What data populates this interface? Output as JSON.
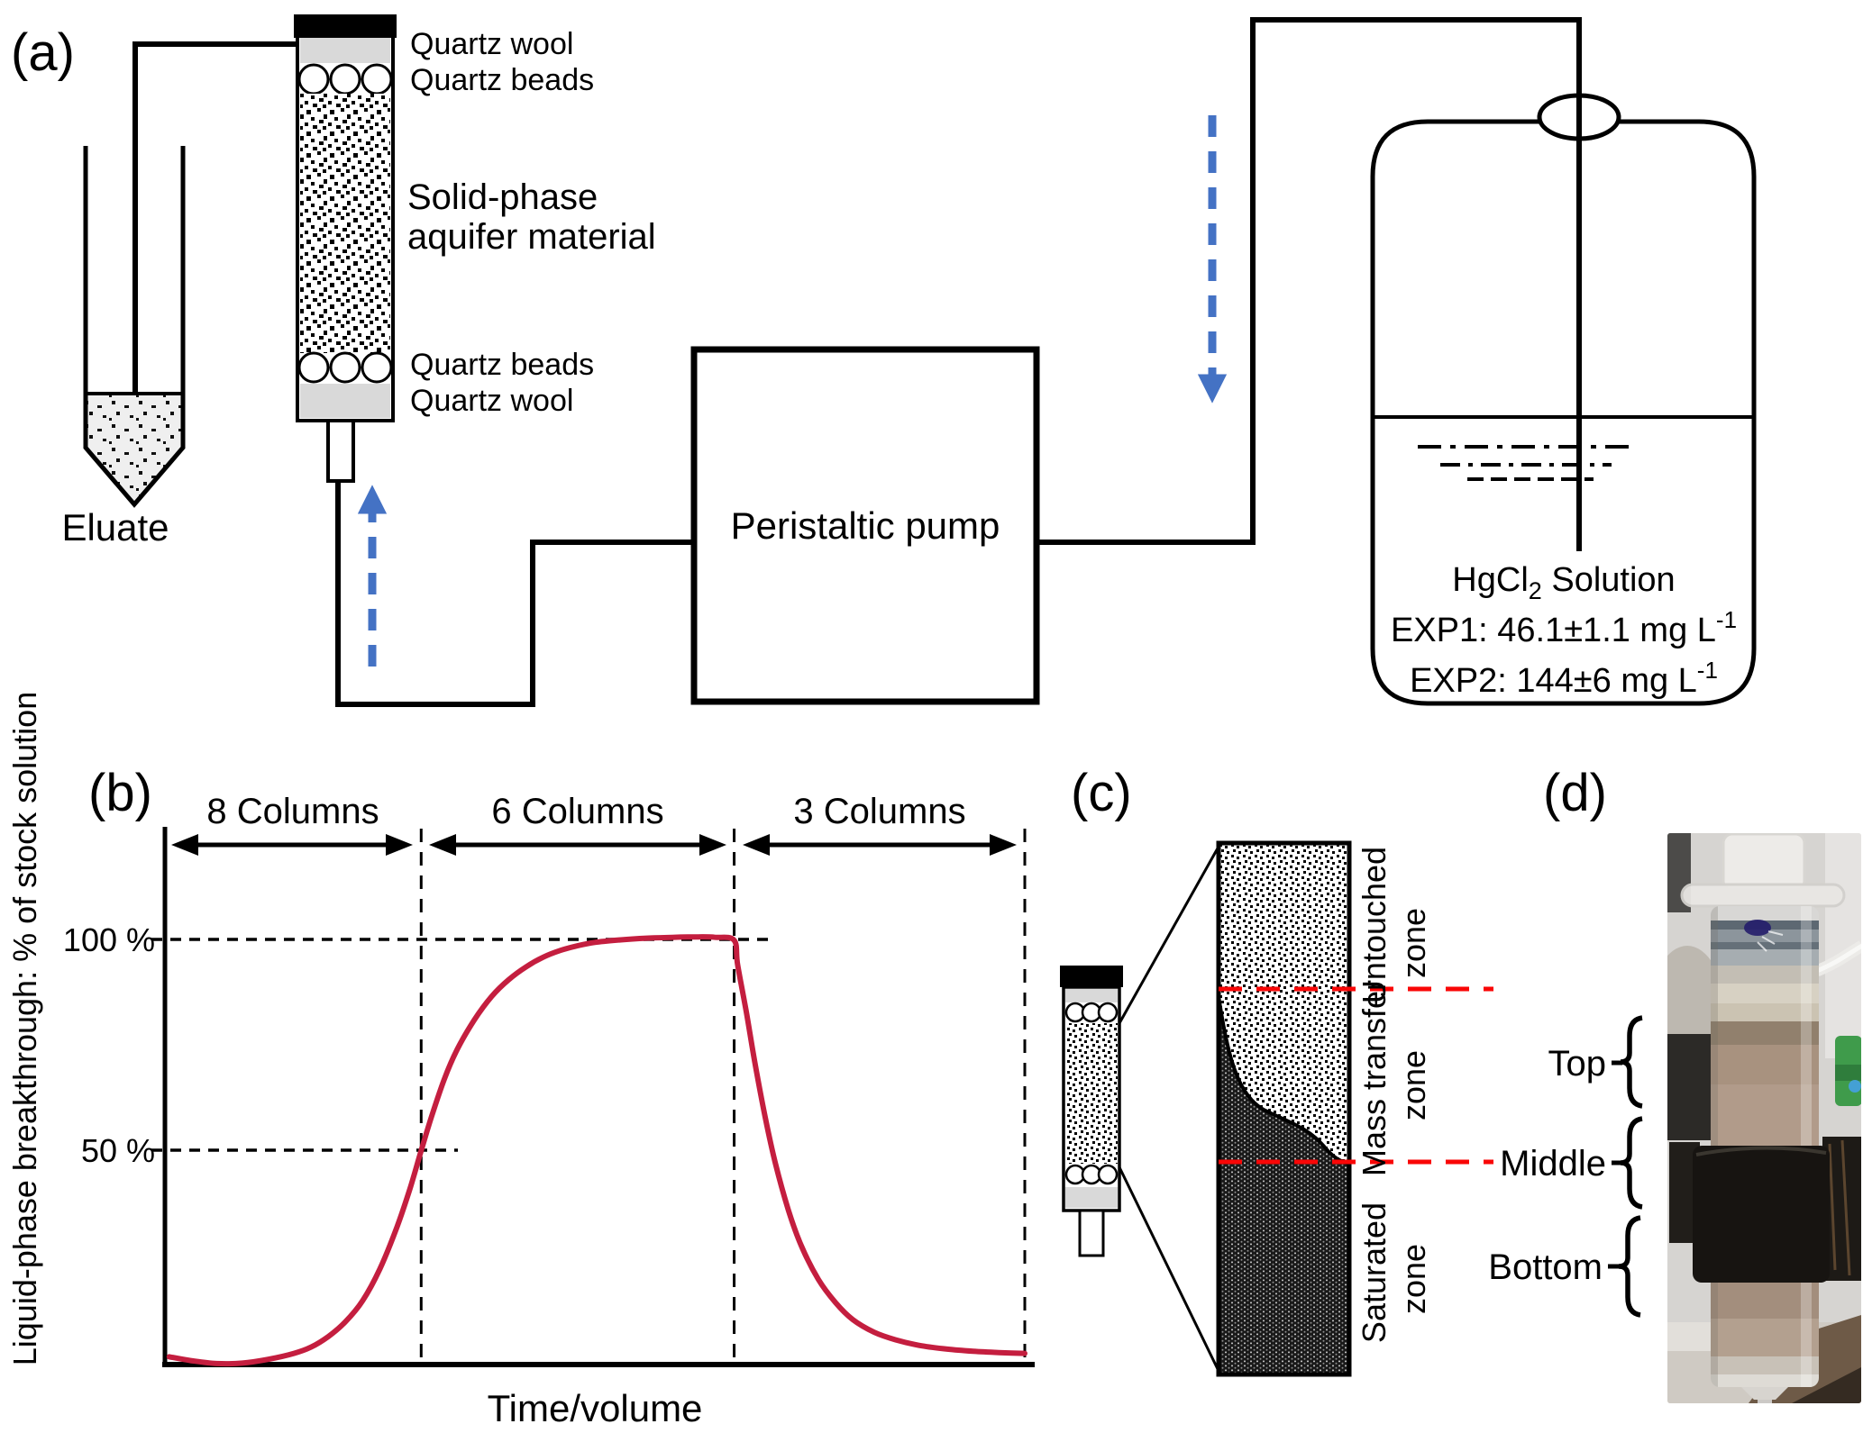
{
  "figure": {
    "panel_labels": {
      "a": "(a)",
      "b": "(b)",
      "c": "(c)",
      "d": "(d)"
    }
  },
  "panel_a": {
    "eluate_label": "Eluate",
    "quartz_wool_top": "Quartz wool",
    "quartz_beads_top": "Quartz beads",
    "material_label_line1": "Solid-phase",
    "material_label_line2": "aquifer material",
    "quartz_beads_bottom": "Quartz beads",
    "quartz_wool_bottom": "Quartz wool",
    "pump_label": "Peristaltic pump",
    "flow_arrow_color": "#4472c4",
    "reservoir": {
      "solution_pre": "HgCl",
      "solution_sub": "2",
      "solution_post": " Solution",
      "exp1_main": "EXP1: 46.1±1.1 mg L",
      "exp1_sup": "-1",
      "exp2_main": "EXP2: 144±6 mg L",
      "exp2_sup": "-1"
    }
  },
  "chart_data": {
    "type": "line",
    "title": "",
    "xlabel": "Time/volume",
    "ylabel": "Liquid-phase breakthrough: % of stock solution",
    "y_tick_labels": [
      "100 %",
      "50 %"
    ],
    "y_tick_values": [
      100,
      50
    ],
    "ylim": [
      0,
      125
    ],
    "grid": false,
    "legend": "none",
    "phase_labels": [
      "8 Columns",
      "6 Columns",
      "3 Columns"
    ],
    "phase_boundaries_t": [
      29.8,
      66.2,
      100
    ],
    "phase_description": "x axis split by dashed lines into three pumping phases; curve reaches 50% at end of 8-column phase, plateaus at 100% during 6-column phase, decays toward 0 during 3-column phase",
    "series": [
      {
        "name": "Liquid-phase breakthrough curve",
        "color": "#c41e3f",
        "points": [
          [
            0.5,
            1.2
          ],
          [
            3,
            0.3
          ],
          [
            6,
            -0.4
          ],
          [
            9,
            -0.3
          ],
          [
            12,
            0.6
          ],
          [
            15,
            2
          ],
          [
            17,
            3.5
          ],
          [
            19,
            6
          ],
          [
            21,
            9.5
          ],
          [
            23,
            14.5
          ],
          [
            25,
            22
          ],
          [
            27,
            32
          ],
          [
            28.5,
            41
          ],
          [
            29.8,
            50
          ],
          [
            31,
            58
          ],
          [
            32.5,
            67
          ],
          [
            34,
            74
          ],
          [
            36,
            81
          ],
          [
            38,
            86.5
          ],
          [
            40,
            90.5
          ],
          [
            42,
            93.5
          ],
          [
            44,
            95.8
          ],
          [
            46,
            97.4
          ],
          [
            48,
            98.5
          ],
          [
            50,
            99.3
          ],
          [
            53,
            99.9
          ],
          [
            56,
            100.3
          ],
          [
            59,
            100.5
          ],
          [
            62,
            100.6
          ],
          [
            64,
            100.5
          ],
          [
            66.2,
            99.8
          ],
          [
            66.6,
            94
          ],
          [
            67.6,
            83
          ],
          [
            68.6,
            71
          ],
          [
            69.8,
            58
          ],
          [
            71,
            47
          ],
          [
            72.5,
            36
          ],
          [
            74,
            27.5
          ],
          [
            76,
            19.5
          ],
          [
            78,
            14
          ],
          [
            80,
            10
          ],
          [
            82.5,
            7
          ],
          [
            85,
            5.2
          ],
          [
            88,
            3.8
          ],
          [
            91,
            3
          ],
          [
            94,
            2.5
          ],
          [
            97,
            2.2
          ],
          [
            100,
            2
          ]
        ]
      }
    ]
  },
  "panel_c": {
    "zone_labels": [
      {
        "line1": "Untouched",
        "line2": "zone"
      },
      {
        "line1": "Mass transfer",
        "line2": "zone"
      },
      {
        "line1": "Saturated",
        "line2": "zone"
      }
    ],
    "boundary_line_color": "#f90606"
  },
  "panel_d": {
    "section_labels": [
      "Top",
      "Middle",
      "Bottom"
    ]
  }
}
